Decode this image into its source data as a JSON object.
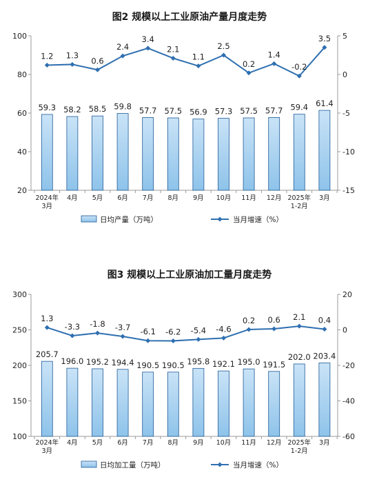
{
  "chart_data": [
    {
      "type": "bar+line",
      "title": "图2  规模以上工业原油产量月度走势",
      "categories": [
        [
          "2024年",
          "3月"
        ],
        [
          "4月"
        ],
        [
          "5月"
        ],
        [
          "6月"
        ],
        [
          "7月"
        ],
        [
          "8月"
        ],
        [
          "9月"
        ],
        [
          "10月"
        ],
        [
          "11月"
        ],
        [
          "12月"
        ],
        [
          "2025年",
          "1-2月"
        ],
        [
          "3月"
        ]
      ],
      "series": [
        {
          "name": "日均产量（万吨）",
          "kind": "bar",
          "axis": "left",
          "values": [
            59.3,
            58.2,
            58.5,
            59.8,
            57.7,
            57.5,
            56.9,
            57.3,
            57.5,
            57.7,
            59.4,
            61.4
          ],
          "labels": [
            "59.3",
            "58.2",
            "58.5",
            "59.8",
            "57.7",
            "57.5",
            "56.9",
            "57.3",
            "57.5",
            "57.7",
            "59.4",
            "61.4"
          ]
        },
        {
          "name": "当月增速（%）",
          "kind": "line",
          "axis": "right",
          "values": [
            1.2,
            1.3,
            0.6,
            2.4,
            3.4,
            2.1,
            1.1,
            2.5,
            0.2,
            1.4,
            -0.2,
            3.5
          ],
          "labels": [
            "1.2",
            "1.3",
            "0.6",
            "2.4",
            "3.4",
            "2.1",
            "1.1",
            "2.5",
            "0.2",
            "1.4",
            "-0.2",
            "3.5"
          ]
        }
      ],
      "ylim_left": [
        20,
        100
      ],
      "yticks_left": [
        20,
        40,
        60,
        80,
        100
      ],
      "ylim_right": [
        -15,
        5
      ],
      "yticks_right": [
        -15,
        -10,
        -5,
        0,
        5
      ],
      "legend_position": "bottom",
      "grid": false
    },
    {
      "type": "bar+line",
      "title": "图3  规模以上工业原油加工量月度走势",
      "categories": [
        [
          "2024年",
          "3月"
        ],
        [
          "4月"
        ],
        [
          "5月"
        ],
        [
          "6月"
        ],
        [
          "7月"
        ],
        [
          "8月"
        ],
        [
          "9月"
        ],
        [
          "10月"
        ],
        [
          "11月"
        ],
        [
          "12月"
        ],
        [
          "2025年",
          "1-2月"
        ],
        [
          "3月"
        ]
      ],
      "series": [
        {
          "name": "日均加工量（万吨）",
          "kind": "bar",
          "axis": "left",
          "values": [
            205.7,
            196.0,
            195.2,
            194.4,
            190.5,
            190.5,
            195.8,
            192.1,
            195.0,
            191.5,
            202.0,
            203.4
          ],
          "labels": [
            "205.7",
            "196.0",
            "195.2",
            "194.4",
            "190.5",
            "190.5",
            "195.8",
            "192.1",
            "195.0",
            "191.5",
            "202.0",
            "203.4"
          ]
        },
        {
          "name": "当月增速（%）",
          "kind": "line",
          "axis": "right",
          "values": [
            1.3,
            -3.3,
            -1.8,
            -3.7,
            -6.1,
            -6.2,
            -5.4,
            -4.6,
            0.2,
            0.6,
            2.1,
            0.4
          ],
          "labels": [
            "1.3",
            "-3.3",
            "-1.8",
            "-3.7",
            "-6.1",
            "-6.2",
            "-5.4",
            "-4.6",
            "0.2",
            "0.6",
            "2.1",
            "0.4"
          ]
        }
      ],
      "ylim_left": [
        100,
        300
      ],
      "yticks_left": [
        100,
        150,
        200,
        250,
        300
      ],
      "ylim_right": [
        -60,
        20
      ],
      "yticks_right": [
        -60,
        -40,
        -20,
        0,
        20
      ],
      "legend_position": "bottom",
      "grid": false
    }
  ],
  "colors": {
    "bar_fill_top": "#c9e3f7",
    "bar_fill_bottom": "#8ec3ea",
    "bar_stroke": "#1f5a96",
    "line": "#2e6fb0",
    "axis": "#999999",
    "text": "#222222"
  }
}
